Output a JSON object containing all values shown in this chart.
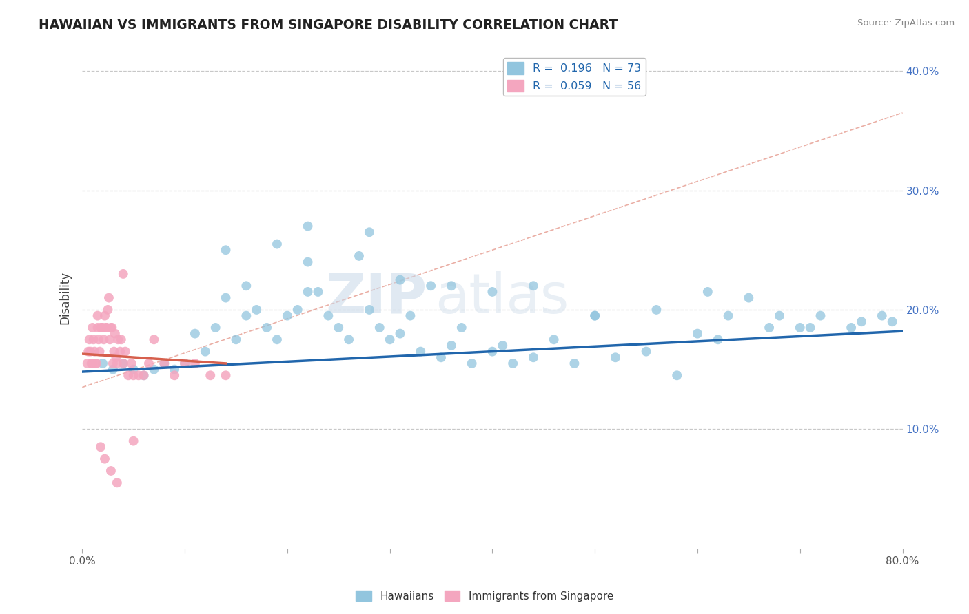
{
  "title": "HAWAIIAN VS IMMIGRANTS FROM SINGAPORE DISABILITY CORRELATION CHART",
  "source": "Source: ZipAtlas.com",
  "ylabel": "Disability",
  "xlim": [
    0.0,
    0.8
  ],
  "ylim": [
    0.0,
    0.42
  ],
  "xticks": [
    0.0,
    0.1,
    0.2,
    0.3,
    0.4,
    0.5,
    0.6,
    0.7,
    0.8
  ],
  "ytick_positions": [
    0.1,
    0.2,
    0.3,
    0.4
  ],
  "ytick_labels": [
    "10.0%",
    "20.0%",
    "30.0%",
    "40.0%"
  ],
  "legend1_label": "R =  0.196   N = 73",
  "legend2_label": "R =  0.059   N = 56",
  "legend_bottom_label1": "Hawaiians",
  "legend_bottom_label2": "Immigrants from Singapore",
  "blue_color": "#92c5de",
  "pink_color": "#f4a6bf",
  "blue_line_color": "#2166ac",
  "pink_line_color": "#d6604d",
  "diag_line_color": "#d6604d",
  "watermark_zip": "ZIP",
  "watermark_atlas": "atlas",
  "blue_scatter_x": [
    0.02,
    0.03,
    0.04,
    0.05,
    0.06,
    0.07,
    0.08,
    0.09,
    0.1,
    0.11,
    0.12,
    0.13,
    0.14,
    0.15,
    0.16,
    0.17,
    0.18,
    0.19,
    0.2,
    0.21,
    0.22,
    0.23,
    0.24,
    0.25,
    0.26,
    0.28,
    0.29,
    0.3,
    0.31,
    0.32,
    0.33,
    0.35,
    0.36,
    0.37,
    0.38,
    0.4,
    0.41,
    0.42,
    0.44,
    0.46,
    0.48,
    0.5,
    0.52,
    0.55,
    0.58,
    0.6,
    0.62,
    0.63,
    0.65,
    0.68,
    0.7,
    0.72,
    0.75,
    0.78,
    0.14,
    0.16,
    0.19,
    0.22,
    0.27,
    0.31,
    0.36,
    0.4,
    0.44,
    0.5,
    0.56,
    0.61,
    0.67,
    0.71,
    0.76,
    0.79,
    0.22,
    0.28,
    0.34
  ],
  "blue_scatter_y": [
    0.155,
    0.15,
    0.155,
    0.15,
    0.145,
    0.15,
    0.155,
    0.15,
    0.155,
    0.18,
    0.165,
    0.185,
    0.21,
    0.175,
    0.195,
    0.2,
    0.185,
    0.175,
    0.195,
    0.2,
    0.215,
    0.215,
    0.195,
    0.185,
    0.175,
    0.2,
    0.185,
    0.175,
    0.18,
    0.195,
    0.165,
    0.16,
    0.17,
    0.185,
    0.155,
    0.165,
    0.17,
    0.155,
    0.16,
    0.175,
    0.155,
    0.195,
    0.16,
    0.165,
    0.145,
    0.18,
    0.175,
    0.195,
    0.21,
    0.195,
    0.185,
    0.195,
    0.185,
    0.195,
    0.25,
    0.22,
    0.255,
    0.24,
    0.245,
    0.225,
    0.22,
    0.215,
    0.22,
    0.195,
    0.2,
    0.215,
    0.185,
    0.185,
    0.19,
    0.19,
    0.27,
    0.265,
    0.22
  ],
  "pink_scatter_x": [
    0.005,
    0.006,
    0.007,
    0.008,
    0.009,
    0.01,
    0.01,
    0.011,
    0.012,
    0.013,
    0.014,
    0.015,
    0.015,
    0.016,
    0.017,
    0.018,
    0.019,
    0.02,
    0.021,
    0.022,
    0.023,
    0.024,
    0.025,
    0.026,
    0.027,
    0.028,
    0.029,
    0.03,
    0.031,
    0.032,
    0.033,
    0.034,
    0.035,
    0.037,
    0.038,
    0.04,
    0.042,
    0.045,
    0.048,
    0.05,
    0.055,
    0.06,
    0.065,
    0.07,
    0.08,
    0.09,
    0.1,
    0.11,
    0.125,
    0.14,
    0.018,
    0.022,
    0.028,
    0.034,
    0.04,
    0.05
  ],
  "pink_scatter_y": [
    0.155,
    0.165,
    0.175,
    0.165,
    0.155,
    0.155,
    0.185,
    0.175,
    0.165,
    0.155,
    0.155,
    0.185,
    0.195,
    0.175,
    0.165,
    0.185,
    0.185,
    0.185,
    0.175,
    0.195,
    0.185,
    0.185,
    0.2,
    0.21,
    0.175,
    0.185,
    0.185,
    0.155,
    0.165,
    0.18,
    0.16,
    0.155,
    0.175,
    0.165,
    0.175,
    0.155,
    0.165,
    0.145,
    0.155,
    0.145,
    0.145,
    0.145,
    0.155,
    0.175,
    0.155,
    0.145,
    0.155,
    0.155,
    0.145,
    0.145,
    0.085,
    0.075,
    0.065,
    0.055,
    0.23,
    0.09
  ],
  "blue_line_x": [
    0.0,
    0.8
  ],
  "blue_line_y": [
    0.148,
    0.182
  ],
  "pink_line_x": [
    0.0,
    0.14
  ],
  "pink_line_y": [
    0.163,
    0.155
  ],
  "diag_line_x": [
    0.0,
    0.8
  ],
  "diag_line_y": [
    0.135,
    0.365
  ]
}
